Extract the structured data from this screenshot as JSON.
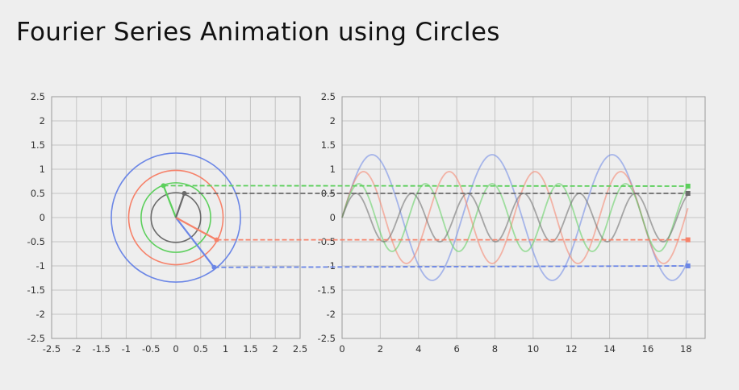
{
  "title": "Fourier Series Animation using Circles",
  "colors": {
    "blue": "#6b86e6",
    "red": "#f6826a",
    "green": "#5ccf5c",
    "gray": "#6a6a6a"
  },
  "chart_data": [
    {
      "type": "line",
      "title": "",
      "xlim": [
        -2.5,
        2.5
      ],
      "ylim": [
        -2.5,
        2.5
      ],
      "xticks": [
        "-2.5",
        "-2",
        "-1.5",
        "-1",
        "-0.5",
        "0",
        "0.5",
        "1",
        "1.5",
        "2",
        "2.5"
      ],
      "yticks": [
        "2.5",
        "2",
        "1.5",
        "1",
        "0.5",
        "0",
        "-0.5",
        "-1",
        "-1.5",
        "-2",
        "-2.5"
      ],
      "grid": true,
      "circles": [
        {
          "name": "blue",
          "radius": 1.3,
          "color": "#6b86e6"
        },
        {
          "name": "red",
          "radius": 0.95,
          "color": "#f6826a"
        },
        {
          "name": "green",
          "radius": 0.7,
          "color": "#5ccf5c"
        },
        {
          "name": "gray",
          "radius": 0.5,
          "color": "#6a6a6a"
        }
      ],
      "vectors": [
        {
          "name": "blue",
          "x": 0.77,
          "y": -1.03,
          "color": "#6b86e6"
        },
        {
          "name": "red",
          "x": 0.82,
          "y": -0.46,
          "color": "#f6826a"
        },
        {
          "name": "green",
          "x": -0.25,
          "y": 0.66,
          "color": "#5ccf5c"
        },
        {
          "name": "gray",
          "x": 0.17,
          "y": 0.5,
          "color": "#6a6a6a"
        }
      ]
    },
    {
      "type": "line",
      "title": "",
      "xlim": [
        0,
        19
      ],
      "ylim": [
        -2.5,
        2.5
      ],
      "xticks": [
        "0",
        "2",
        "4",
        "6",
        "8",
        "10",
        "12",
        "14",
        "16",
        "18"
      ],
      "yticks": [
        "2.5",
        "2",
        "1.5",
        "1",
        "0.5",
        "0",
        "-0.5",
        "-1",
        "-1.5",
        "-2",
        "-2.5"
      ],
      "grid": true,
      "x_end": 18.1,
      "series": [
        {
          "name": "blue",
          "amplitude": 1.3,
          "frequency": 1.0,
          "color": "#6b86e6",
          "end_value": -1.0
        },
        {
          "name": "red",
          "amplitude": 0.95,
          "frequency": 1.4,
          "color": "#f6826a",
          "end_value": -0.46
        },
        {
          "name": "green",
          "amplitude": 0.7,
          "frequency": 1.8,
          "color": "#5ccf5c",
          "end_value": 0.65
        },
        {
          "name": "gray",
          "amplitude": 0.5,
          "frequency": 2.15,
          "color": "#6a6a6a",
          "end_value": 0.5
        }
      ]
    }
  ]
}
